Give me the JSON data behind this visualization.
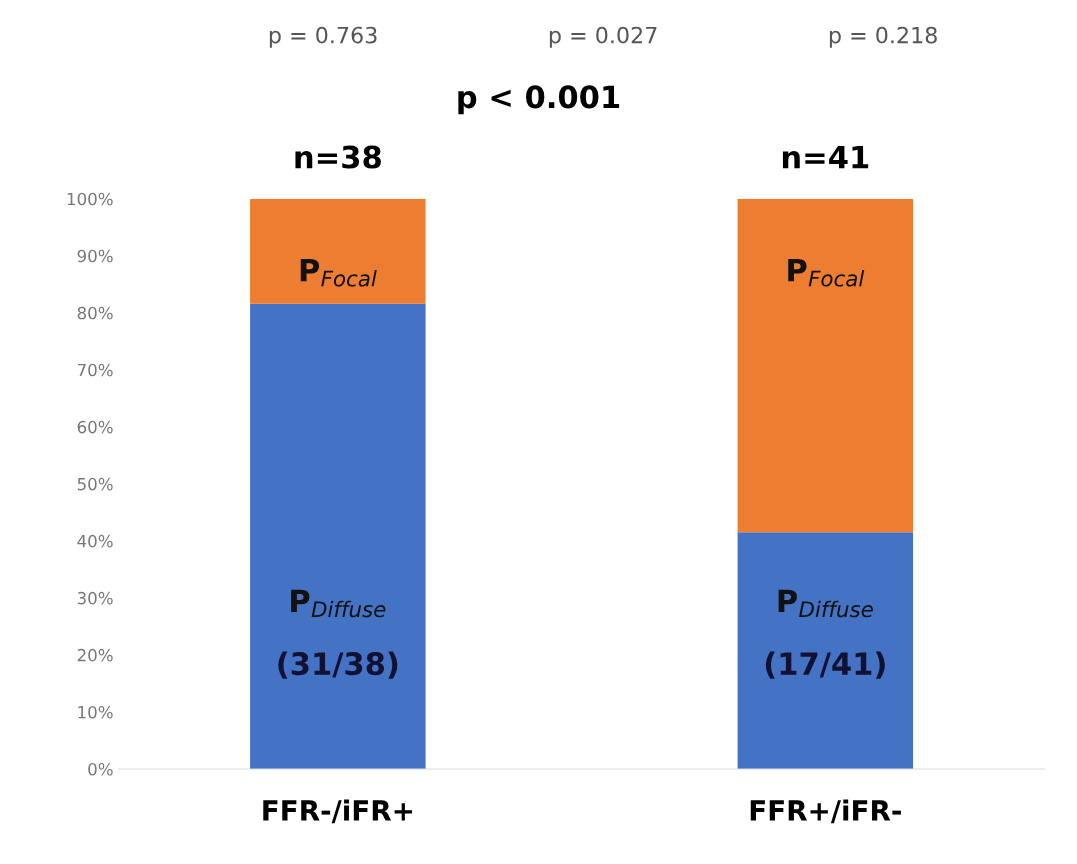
{
  "chart_data": {
    "type": "bar",
    "stacked": true,
    "title": "p < 0.001",
    "categories": [
      "FFR-/iFR+",
      "FFR+/iFR-"
    ],
    "series": [
      {
        "name": "P$_{Diffuse}$",
        "color": "#4472c4",
        "values": [
          81.6,
          41.5
        ],
        "value_labels": [
          "(31/38)",
          "(17/41)"
        ]
      },
      {
        "name": "P$_{Focal}$",
        "color": "#ed7d31",
        "values": [
          18.4,
          58.5
        ]
      }
    ],
    "ylim": [
      0,
      100
    ],
    "yticks": [
      {
        "value": 0,
        "label": "0%"
      },
      {
        "value": 10,
        "label": "10%"
      },
      {
        "value": 20,
        "label": "20%"
      },
      {
        "value": 30,
        "label": "30%"
      },
      {
        "value": 40,
        "label": "40%"
      },
      {
        "value": 50,
        "label": "50%"
      },
      {
        "value": 60,
        "label": "60%"
      },
      {
        "value": 70,
        "label": "70%"
      },
      {
        "value": 80,
        "label": "80%"
      },
      {
        "value": 90,
        "label": "90%"
      },
      {
        "value": 100,
        "label": "100%"
      }
    ],
    "grid": false,
    "legend": false,
    "annotations": [
      {
        "text": "n=38",
        "x": "FFR-/iFR+",
        "y": 100
      },
      {
        "text": "n=41",
        "x": "FFR+/iFR-",
        "y": 100
      },
      "p = 0.763",
      "p = 0.027",
      "p = 0.218"
    ]
  }
}
